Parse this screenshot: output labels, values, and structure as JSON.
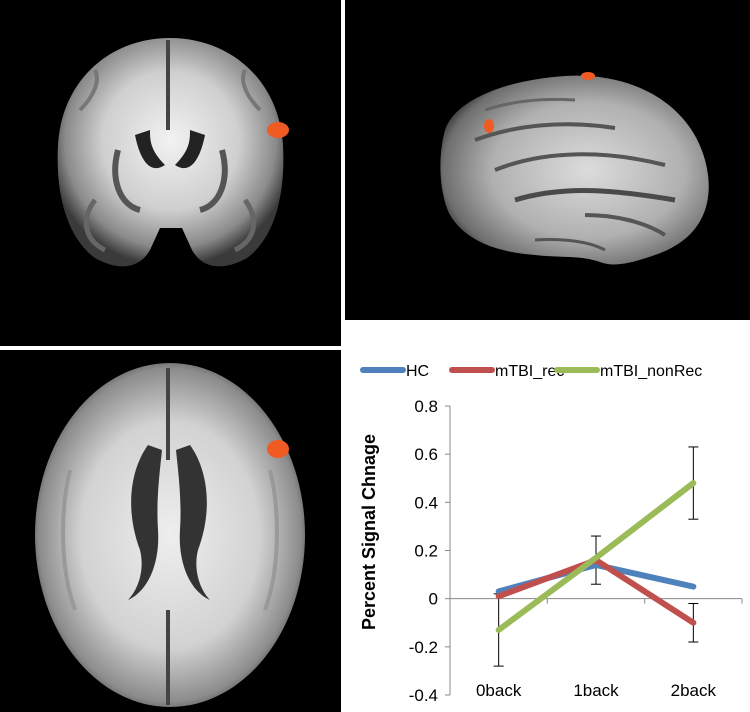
{
  "colors": {
    "activation": "#f05a23",
    "background": "#000000",
    "HC": "#4f81bd",
    "mTBI_rec": "#c0504d",
    "mTBI_nonRec": "#9bbb59"
  },
  "brain_images": {
    "coronal_view": {
      "activation_blobs": 1
    },
    "sagittal_view": {
      "activation_blobs": 2
    },
    "axial_view": {
      "activation_blobs": 1
    }
  },
  "chart_data": {
    "type": "line",
    "categories": [
      "0back",
      "1back",
      "2back"
    ],
    "ylabel": "Percent Signal Chnage",
    "xlabel": "",
    "ylim": [
      -0.4,
      0.8
    ],
    "yticks": [
      "0.8",
      "0.6",
      "0.4",
      "0.2",
      "0",
      "-0.2",
      "-0.4"
    ],
    "ytick_values": [
      0.8,
      0.6,
      0.4,
      0.2,
      0,
      -0.2,
      -0.4
    ],
    "legend_position": "top",
    "series": [
      {
        "name": "HC",
        "values": [
          0.03,
          0.14,
          0.05
        ],
        "error": [
          0,
          0,
          0
        ],
        "color": "#4f81bd"
      },
      {
        "name": "mTBI_rec",
        "values": [
          0.01,
          0.16,
          -0.1
        ],
        "error": [
          0,
          0.1,
          0.08
        ],
        "color": "#c0504d"
      },
      {
        "name": "mTBI_nonRec",
        "values": [
          -0.13,
          0.17,
          0.48
        ],
        "error": [
          0.15,
          0,
          0.15
        ],
        "color": "#9bbb59"
      }
    ]
  }
}
